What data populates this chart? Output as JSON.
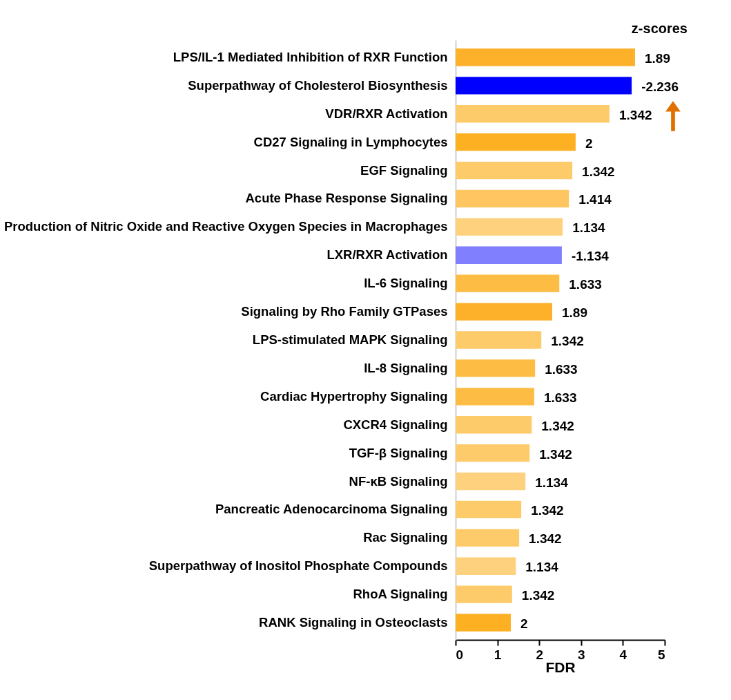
{
  "chart_data": {
    "type": "bar",
    "orientation": "horizontal",
    "xlabel": "FDR",
    "annotations": [
      "z-scores",
      {
        "text": "1.89",
        "x": 4.29,
        "y": "LPS/IL-1 Mediated Inhibition of RXR Function"
      },
      {
        "text": "-2.236",
        "x": 4.21,
        "y": "Superpathway of Cholesterol Biosynthesis"
      },
      {
        "text": "1.342",
        "x": 3.68,
        "y": "VDR/RXR Activation"
      },
      {
        "text": "2",
        "x": 2.87,
        "y": "CD27 Signaling in Lymphocytes"
      },
      {
        "text": "1.342",
        "x": 2.79,
        "y": "EGF Signaling"
      },
      {
        "text": "1.414",
        "x": 2.71,
        "y": "Acute Phase Response Signaling"
      },
      {
        "text": "1.134",
        "x": 2.56,
        "y": "Production of Nitric Oxide and Reactive Oxygen Species in Macrophages"
      },
      {
        "text": "-1.134",
        "x": 2.54,
        "y": "LXR/RXR Activation"
      },
      {
        "text": "1.633",
        "x": 2.48,
        "y": "IL-6 Signaling"
      },
      {
        "text": "1.89",
        "x": 2.31,
        "y": "Signaling by Rho Family GTPases"
      },
      {
        "text": "1.342",
        "x": 2.05,
        "y": "LPS-stimulated MAPK Signaling"
      },
      {
        "text": "1.633",
        "x": 1.9,
        "y": "IL-8 Signaling"
      },
      {
        "text": "1.633",
        "x": 1.88,
        "y": "Cardiac Hypertrophy Signaling"
      },
      {
        "text": "1.342",
        "x": 1.82,
        "y": "CXCR4 Signaling"
      },
      {
        "text": "1.342",
        "x": 1.77,
        "y": "TGF-β Signaling"
      },
      {
        "text": "1.134",
        "x": 1.67,
        "y": "NF-κB Signaling"
      },
      {
        "text": "1.342",
        "x": 1.57,
        "y": "Pancreatic Adenocarcinoma Signaling"
      },
      {
        "text": "1.342",
        "x": 1.52,
        "y": "Rac Signaling"
      },
      {
        "text": "1.134",
        "x": 1.44,
        "y": "Superpathway of Inositol Phosphate Compounds"
      },
      {
        "text": "1.342",
        "x": 1.35,
        "y": "RhoA Signaling"
      },
      {
        "text": "2",
        "x": 1.32,
        "y": "RANK Signaling in Osteoclasts"
      }
    ],
    "categories": [
      "LPS/IL-1 Mediated Inhibition of RXR Function",
      "Superpathway of Cholesterol Biosynthesis",
      "VDR/RXR Activation",
      "CD27 Signaling in Lymphocytes",
      "EGF Signaling",
      "Acute Phase Response Signaling",
      "Production of Nitric Oxide and Reactive Oxygen Species in Macrophages",
      "LXR/RXR Activation",
      "IL-6 Signaling",
      "Signaling by Rho Family GTPases",
      "LPS-stimulated MAPK Signaling",
      "IL-8 Signaling",
      "Cardiac Hypertrophy Signaling",
      "CXCR4 Signaling",
      "TGF-β Signaling",
      "NF-κB Signaling",
      "Pancreatic Adenocarcinoma Signaling",
      "Rac Signaling",
      "Superpathway of Inositol Phosphate Compounds",
      "RhoA Signaling",
      "RANK Signaling in Osteoclasts"
    ],
    "values": [
      4.29,
      4.21,
      3.68,
      2.87,
      2.79,
      2.71,
      2.56,
      2.54,
      2.48,
      2.31,
      2.05,
      1.9,
      1.88,
      1.82,
      1.77,
      1.67,
      1.57,
      1.52,
      1.44,
      1.35,
      1.32
    ],
    "colors": [
      "#fdb12a",
      "#0000ff",
      "#fecb6b",
      "#fdb022",
      "#fecb6b",
      "#fec560",
      "#fed17f",
      "#8080ff",
      "#fdbd45",
      "#fdb12a",
      "#fecb6b",
      "#fdbd45",
      "#fdbd45",
      "#fecb6b",
      "#fecb6b",
      "#fed17f",
      "#fecb6b",
      "#fecb6b",
      "#fed17f",
      "#fecb6b",
      "#fdb022"
    ],
    "xlim": [
      0,
      5
    ],
    "xticks": [
      0,
      1,
      2,
      3,
      4,
      5
    ],
    "grid": false
  }
}
